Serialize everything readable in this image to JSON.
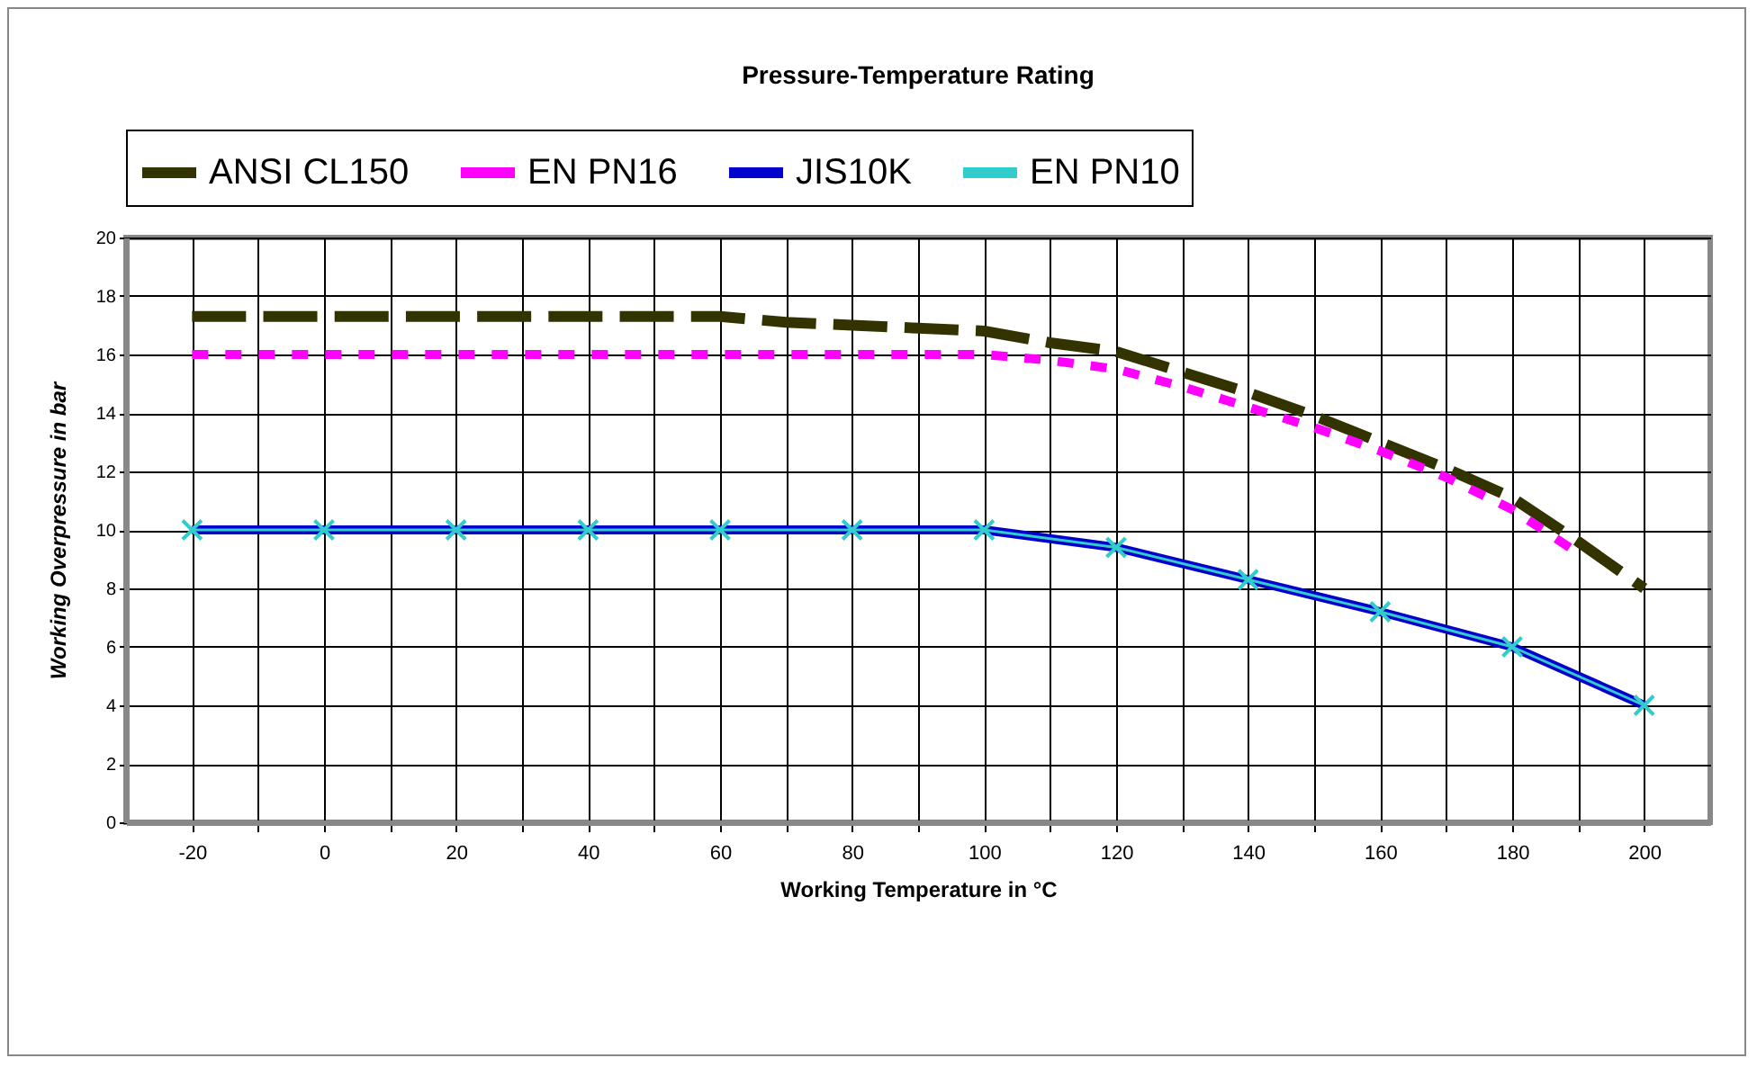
{
  "chart_data": {
    "type": "line",
    "title": "Pressure-Temperature Rating",
    "xlabel": "Working Temperature in °C",
    "ylabel": "Working  Overpressure in  bar",
    "xlim": [
      -30,
      210
    ],
    "ylim": [
      0,
      20
    ],
    "xticks": [
      -20,
      {
        "value": -10,
        "label": null
      },
      0,
      {
        "value": 10,
        "label": null
      },
      20,
      {
        "value": 30,
        "label": null
      },
      40,
      {
        "value": 50,
        "label": null
      },
      60,
      {
        "value": 70,
        "label": null
      },
      80,
      {
        "value": 90,
        "label": null
      },
      100,
      {
        "value": 110,
        "label": null
      },
      120,
      {
        "value": 130,
        "label": null
      },
      140,
      {
        "value": 150,
        "label": null
      },
      160,
      {
        "value": 170,
        "label": null
      },
      180,
      {
        "value": 190,
        "label": null
      },
      200
    ],
    "yticks": [
      0,
      2,
      4,
      6,
      8,
      10,
      12,
      14,
      16,
      18,
      20
    ],
    "grid": true,
    "legend": "top",
    "series": [
      {
        "name": "ANSI CL150",
        "color": "#333300",
        "line_style": "dashed",
        "marker": "none",
        "x": [
          -20,
          -10,
          0,
          10,
          20,
          30,
          40,
          50,
          60,
          70,
          80,
          90,
          100,
          110,
          120,
          130,
          140,
          150,
          160,
          170,
          180,
          190,
          200
        ],
        "values": [
          17.3,
          17.3,
          17.3,
          17.3,
          17.3,
          17.3,
          17.3,
          17.3,
          17.3,
          17.1,
          17.0,
          16.9,
          16.8,
          16.4,
          16.1,
          15.4,
          14.7,
          13.9,
          13.0,
          12.1,
          11.1,
          9.6,
          8.0
        ]
      },
      {
        "name": "EN PN16",
        "color": "#ff00ff",
        "line_style": "dotted",
        "marker": "none",
        "x": [
          -20,
          -10,
          0,
          10,
          20,
          30,
          40,
          50,
          60,
          70,
          80,
          90,
          100,
          110,
          120,
          130,
          140,
          150,
          160,
          170,
          180,
          190
        ],
        "values": [
          16,
          16,
          16,
          16,
          16,
          16,
          16,
          16,
          16,
          16,
          16,
          16,
          16,
          15.8,
          15.5,
          14.9,
          14.2,
          13.5,
          12.7,
          11.8,
          10.7,
          9.2
        ]
      },
      {
        "name": "JIS10K",
        "color": "#0000cc",
        "line_style": "solid",
        "marker": "none",
        "x": [
          -20,
          0,
          20,
          40,
          60,
          80,
          100,
          120,
          140,
          160,
          180,
          200
        ],
        "values": [
          10,
          10,
          10,
          10,
          10,
          10,
          10,
          9.4,
          8.3,
          7.2,
          6.0,
          4.0
        ]
      },
      {
        "name": "EN PN10",
        "color": "#33cccc",
        "line_style": "solid",
        "marker": "cross",
        "x": [
          -20,
          0,
          20,
          40,
          60,
          80,
          100,
          120,
          140,
          160,
          180,
          200
        ],
        "values": [
          10,
          10,
          10,
          10,
          10,
          10,
          10,
          9.4,
          8.3,
          7.2,
          6.0,
          4.0
        ]
      }
    ]
  }
}
